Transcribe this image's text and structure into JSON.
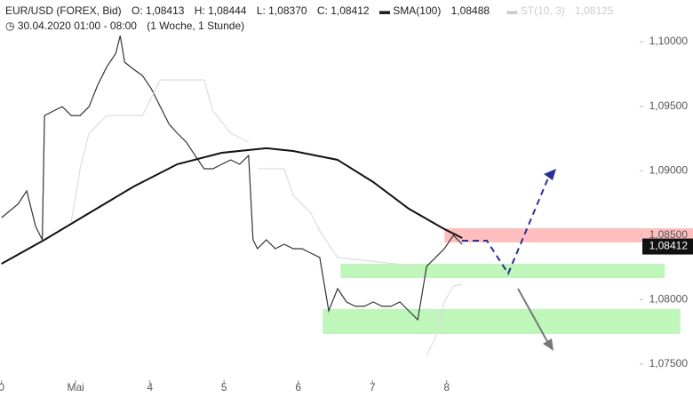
{
  "chart_data": {
    "type": "line",
    "title": "EUR/USD (FOREX, Bid)",
    "ohlc": [
      "O: 1,08413",
      "H: 1,08444",
      "L: 1,08370",
      "C: 1,08412"
    ],
    "subtitle": "30.04.2020 01:00 - 08:00",
    "period": "(1 Woche, 1 Stunde)",
    "xlim": [
      -0.02,
      9.32
    ],
    "xticks": [
      0,
      {
        "value": 1,
        "label": "Mai"
      },
      {
        "value": 2,
        "label": "4"
      },
      {
        "value": 3,
        "label": "5"
      },
      {
        "value": 4,
        "label": "6"
      },
      {
        "value": 5,
        "label": "7"
      },
      {
        "value": 6,
        "label": "8"
      }
    ],
    "ylim": [
      1.07362,
      1.10324
    ],
    "yticks": [
      {
        "value": 1.075,
        "label": "1,07500"
      },
      {
        "value": 1.08,
        "label": "1,08000"
      },
      {
        "value": 1.085,
        "label": "1,08500"
      },
      {
        "value": 1.09,
        "label": "1,09000"
      },
      {
        "value": 1.095,
        "label": "1,09500"
      },
      {
        "value": 1.1,
        "label": "1,10000"
      }
    ],
    "last_price": {
      "value": 1.08412,
      "label": "1,08412"
    },
    "series": [
      {
        "name": "EUR/USD",
        "color": "#333333",
        "x": [
          0,
          0.22,
          0.34,
          0.46,
          0.55,
          0.58,
          0.7,
          0.82,
          0.94,
          1.06,
          1.18,
          1.3,
          1.42,
          1.54,
          1.6,
          1.66,
          1.78,
          1.9,
          2.02,
          2.14,
          2.26,
          2.37,
          2.49,
          2.61,
          2.73,
          2.85,
          2.97,
          3.09,
          3.21,
          3.33,
          3.39,
          3.45,
          3.57,
          3.69,
          3.81,
          3.93,
          4.05,
          4.17,
          4.29,
          4.41,
          4.53,
          4.65,
          4.77,
          4.89,
          5.01,
          5.13,
          5.25,
          5.37,
          5.49,
          5.61,
          5.73,
          5.85,
          5.97,
          6.09,
          6.21
        ],
        "values": [
          1.08636,
          1.0874,
          1.08843,
          1.08568,
          1.08464,
          1.09428,
          1.09463,
          1.09497,
          1.09428,
          1.09428,
          1.09497,
          1.09669,
          1.09807,
          1.0991,
          1.10048,
          1.09842,
          1.09787,
          1.09738,
          1.09635,
          1.09497,
          1.0936,
          1.09291,
          1.09222,
          1.09118,
          1.09015,
          1.09015,
          1.0905,
          1.09084,
          1.0905,
          1.09118,
          1.08464,
          1.08395,
          1.08464,
          1.08395,
          1.0843,
          1.08395,
          1.08395,
          1.08361,
          1.08327,
          1.07913,
          1.08085,
          1.07982,
          1.07948,
          1.07948,
          1.07982,
          1.07948,
          1.07948,
          1.07982,
          1.07913,
          1.07844,
          1.08258,
          1.08327,
          1.08395,
          1.08499,
          1.0843
        ]
      },
      {
        "name": "SMA(100)",
        "legend_value": "1,08488",
        "color": "#111111",
        "x": [
          0,
          0.58,
          1.18,
          1.78,
          2.37,
          2.97,
          3.57,
          3.93,
          4.53,
          5.01,
          5.49,
          5.97,
          6.21
        ],
        "values": [
          1.08278,
          1.08464,
          1.08671,
          1.08877,
          1.0905,
          1.09139,
          1.09174,
          1.09153,
          1.09084,
          1.08912,
          1.08705,
          1.08547,
          1.08478
        ]
      },
      {
        "name": "ST(10, 3)",
        "legend_value": "1,08125",
        "color": "#dddddd",
        "x": [
          0.94,
          1.06,
          1.18,
          1.42,
          1.9,
          2.14,
          2.73,
          2.85,
          3.09,
          3.33,
          3.36,
          3.45,
          3.81,
          3.93,
          4.17,
          4.29,
          4.53,
          5.61,
          5.67,
          5.73,
          5.85,
          5.97,
          6.09,
          6.21
        ],
        "values": [
          1.08602,
          1.09015,
          1.09291,
          1.09428,
          1.09428,
          1.09704,
          1.09704,
          1.09463,
          1.09291,
          1.09222,
          null,
          1.09015,
          1.09015,
          1.08809,
          1.08671,
          1.08533,
          1.08327,
          1.08258,
          null,
          1.07569,
          1.07707,
          1.07982,
          1.08106,
          1.0812
        ]
      }
    ],
    "zones": [
      {
        "x": [
          5.97,
          9.32
        ],
        "y": [
          1.08444,
          1.08554
        ],
        "color": "#ffb3b3"
      },
      {
        "x": [
          4.57,
          8.94
        ],
        "y": [
          1.08168,
          1.08278
        ],
        "color": "#b4f5ad"
      },
      {
        "x": [
          4.33,
          9.15
        ],
        "y": [
          1.07734,
          1.07927
        ],
        "color": "#b4f5ad"
      }
    ]
  }
}
